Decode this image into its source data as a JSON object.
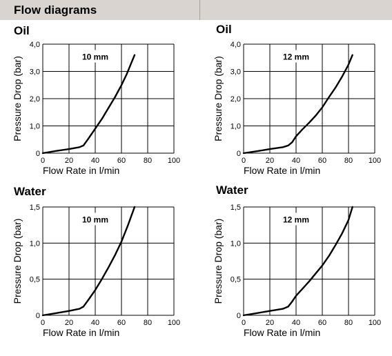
{
  "header": {
    "title": "Flow diagrams"
  },
  "chart_data": [
    {
      "type": "line",
      "title": "Oil",
      "annotation": "10 mm",
      "xlabel": "Flow Rate in l/min",
      "ylabel": "Pressure Drop (bar)",
      "xlim": [
        0,
        100
      ],
      "ylim": [
        0,
        4
      ],
      "xticks": [
        "0",
        "20",
        "40",
        "60",
        "80",
        "100"
      ],
      "yticks": [
        "0",
        "1,0",
        "2,0",
        "3,0",
        "4,0"
      ],
      "grid": true,
      "series": [
        {
          "x": [
            0,
            10,
            20,
            28,
            31,
            35,
            40,
            45,
            50,
            55,
            60,
            64,
            67,
            70
          ],
          "y": [
            0,
            0.08,
            0.15,
            0.22,
            0.28,
            0.55,
            0.9,
            1.25,
            1.65,
            2.05,
            2.5,
            2.9,
            3.25,
            3.6
          ]
        }
      ]
    },
    {
      "type": "line",
      "title": "Oil",
      "annotation": "12 mm",
      "xlabel": "Flow Rate in l/min",
      "ylabel": "Pressure Drop (bar)",
      "xlim": [
        0,
        100
      ],
      "ylim": [
        0,
        4
      ],
      "xticks": [
        "0",
        "20",
        "40",
        "60",
        "80",
        "100"
      ],
      "yticks": [
        "0",
        "1,0",
        "2,0",
        "3,0",
        "4,0"
      ],
      "grid": true,
      "series": [
        {
          "x": [
            0,
            10,
            20,
            30,
            34,
            37,
            40,
            45,
            50,
            55,
            60,
            65,
            70,
            75,
            80,
            83
          ],
          "y": [
            0,
            0.07,
            0.15,
            0.22,
            0.28,
            0.4,
            0.62,
            0.88,
            1.12,
            1.38,
            1.68,
            2.05,
            2.4,
            2.8,
            3.25,
            3.6
          ]
        }
      ]
    },
    {
      "type": "line",
      "title": "Water",
      "annotation": "10 mm",
      "xlabel": "Flow Rate in l/min",
      "ylabel": "Pressure Drop (bar)",
      "xlim": [
        0,
        100
      ],
      "ylim": [
        0,
        1.5
      ],
      "xticks": [
        "0",
        "20",
        "40",
        "60",
        "80",
        "100"
      ],
      "yticks": [
        "0",
        "0,5",
        "1,0",
        "1,5"
      ],
      "grid": true,
      "series": [
        {
          "x": [
            0,
            10,
            20,
            28,
            31,
            35,
            40,
            45,
            50,
            55,
            60,
            65,
            70
          ],
          "y": [
            0,
            0.03,
            0.06,
            0.09,
            0.12,
            0.22,
            0.35,
            0.5,
            0.66,
            0.83,
            1.02,
            1.25,
            1.5
          ]
        }
      ]
    },
    {
      "type": "line",
      "title": "Water",
      "annotation": "12 mm",
      "xlabel": "Flow Rate in l/min",
      "ylabel": "Pressure Drop (bar)",
      "xlim": [
        0,
        100
      ],
      "ylim": [
        0,
        1.5
      ],
      "xticks": [
        "0",
        "20",
        "40",
        "60",
        "80",
        "100"
      ],
      "yticks": [
        "0",
        "0,5",
        "1,0",
        "1,5"
      ],
      "grid": true,
      "series": [
        {
          "x": [
            0,
            10,
            20,
            30,
            34,
            37,
            40,
            45,
            50,
            55,
            60,
            65,
            70,
            75,
            80,
            83
          ],
          "y": [
            0,
            0.03,
            0.06,
            0.09,
            0.12,
            0.19,
            0.27,
            0.37,
            0.47,
            0.58,
            0.69,
            0.82,
            0.97,
            1.13,
            1.32,
            1.5
          ]
        }
      ]
    }
  ]
}
